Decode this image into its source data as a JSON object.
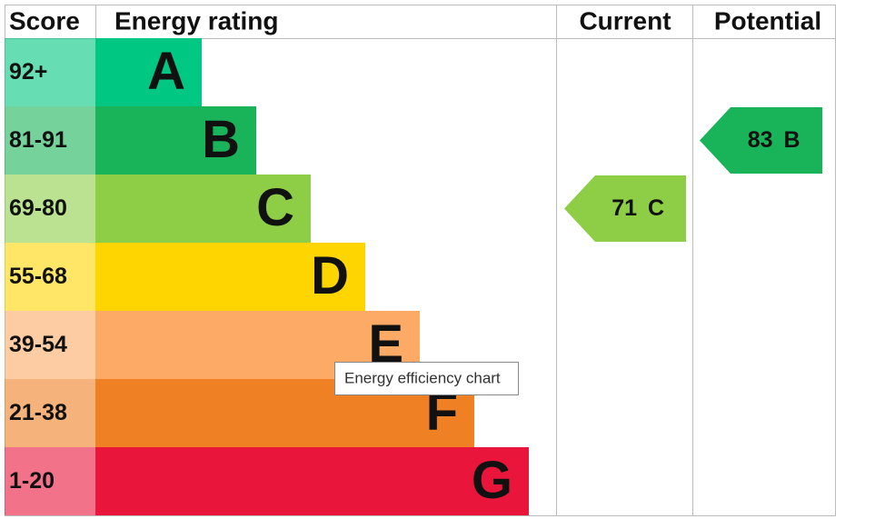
{
  "header": {
    "score": "Score",
    "rating": "Energy rating",
    "current": "Current",
    "potential": "Potential"
  },
  "bands": [
    {
      "range": "92+",
      "letter": "A",
      "color": "#00c781"
    },
    {
      "range": "81-91",
      "letter": "B",
      "color": "#19b459"
    },
    {
      "range": "69-80",
      "letter": "C",
      "color": "#8dce46"
    },
    {
      "range": "55-68",
      "letter": "D",
      "color": "#ffd500"
    },
    {
      "range": "39-54",
      "letter": "E",
      "color": "#fcaa65"
    },
    {
      "range": "21-38",
      "letter": "F",
      "color": "#ef8023"
    },
    {
      "range": "1-20",
      "letter": "G",
      "color": "#e9153b"
    }
  ],
  "current": {
    "value": 71,
    "letter": "C"
  },
  "potential": {
    "value": 83,
    "letter": "B"
  },
  "tooltip": "Energy efficiency chart"
}
